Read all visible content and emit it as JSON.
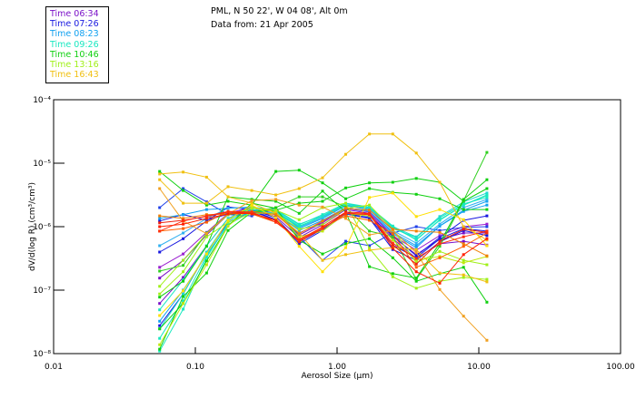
{
  "header": {
    "line1": "PML, N 50 22', W 04 08', Alt 0m",
    "line2": "Data from: 21 Apr 2005"
  },
  "legend": [
    {
      "label": "Time 06:34",
      "color": "#7a10c8"
    },
    {
      "label": "Time 07:26",
      "color": "#1818e0"
    },
    {
      "label": "Time 08:23",
      "color": "#10a0f0"
    },
    {
      "label": "Time 09:26",
      "color": "#18e8c0"
    },
    {
      "label": "Time 10:46",
      "color": "#10d010"
    },
    {
      "label": "Time 13:16",
      "color": "#a0f018"
    },
    {
      "label": "Time 16:43",
      "color": "#f0c010"
    }
  ],
  "chart_data": {
    "type": "line",
    "title": "",
    "xlabel": "Aerosol Size (µm)",
    "ylabel": "dV/d(log R) (cm³/cm³)",
    "xscale": "log",
    "yscale": "log",
    "xlim": [
      0.01,
      100.0
    ],
    "ylim_log10": [
      -8,
      -4
    ],
    "xticks": [
      "0.01",
      "0.10",
      "1.00",
      "10.00",
      "100.00"
    ],
    "yticks_log10": [
      -4,
      -5,
      -6,
      -7,
      -8
    ],
    "yticks": [
      "10⁻⁴",
      "10⁻⁵",
      "10⁻⁶",
      "10⁻⁷",
      "10⁻⁸"
    ],
    "x": [
      0.056,
      0.082,
      0.12,
      0.17,
      0.25,
      0.37,
      0.54,
      0.79,
      1.15,
      1.69,
      2.47,
      3.62,
      5.3,
      7.8,
      11.4
    ],
    "series_note_units": "values are log10 of dV/d(log R)",
    "series": [
      {
        "name": "Time 06:34",
        "color": "#7a10c8",
        "values": [
          -6.81,
          -6.53,
          -6.13,
          -5.81,
          -5.7,
          -5.8,
          -6.13,
          -5.94,
          -5.7,
          -5.76,
          -6.16,
          -6.44,
          -6.2,
          -6.1,
          -6.1
        ]
      },
      {
        "name": "Time 06:34",
        "color": "#7a10c8",
        "values": [
          -7.21,
          -6.8,
          -6.3,
          -5.87,
          -5.73,
          -5.84,
          -6.17,
          -5.97,
          -5.73,
          -5.79,
          -6.19,
          -6.5,
          -6.27,
          -6.23,
          -6.29
        ]
      },
      {
        "name": "Time 06:34",
        "color": "#9a20d0",
        "values": [
          -6.64,
          -6.43,
          -6.09,
          -5.79,
          -5.69,
          -5.81,
          -6.1,
          -5.93,
          -5.71,
          -5.77,
          -6.14,
          -6.37,
          -6.14,
          -6.0,
          -5.96
        ]
      },
      {
        "name": "Time 07:26",
        "color": "#1818e0",
        "values": [
          -6.4,
          -6.19,
          -5.91,
          -5.69,
          -5.73,
          -5.86,
          -6.24,
          -6.03,
          -5.79,
          -5.86,
          -6.29,
          -6.49,
          -6.19,
          -6.03,
          -6.07
        ]
      },
      {
        "name": "Time 07:26",
        "color": "#1818e0",
        "values": [
          -7.56,
          -7.06,
          -6.41,
          -5.93,
          -5.76,
          -5.89,
          -6.27,
          -6.06,
          -5.8,
          -5.87,
          -6.36,
          -6.53,
          -6.24,
          -6.06,
          -6.14
        ]
      },
      {
        "name": "Time 07:26",
        "color": "#2040e8",
        "values": [
          -5.7,
          -5.4,
          -5.61,
          -5.81,
          -5.83,
          -5.7,
          -6.16,
          -6.53,
          -6.23,
          -6.3,
          -6.1,
          -6.0,
          -6.06,
          -6.01,
          -6.0
        ]
      },
      {
        "name": "Time 07:26",
        "color": "#1818e0",
        "values": [
          -5.91,
          -5.81,
          -5.9,
          -5.8,
          -5.74,
          -5.89,
          -6.24,
          -6.04,
          -5.77,
          -5.84,
          -6.14,
          -6.46,
          -6.17,
          -5.9,
          -5.83
        ]
      },
      {
        "name": "Time 08:23",
        "color": "#10a0f0",
        "values": [
          -5.87,
          -5.81,
          -5.73,
          -5.71,
          -5.69,
          -5.74,
          -6.03,
          -5.87,
          -5.67,
          -5.73,
          -6.09,
          -6.3,
          -5.99,
          -5.74,
          -5.6
        ]
      },
      {
        "name": "Time 08:23",
        "color": "#10a0f0",
        "values": [
          -7.49,
          -7.0,
          -6.44,
          -5.97,
          -5.74,
          -5.79,
          -6.06,
          -5.9,
          -5.7,
          -5.76,
          -6.11,
          -6.33,
          -5.99,
          -5.76,
          -5.66
        ]
      },
      {
        "name": "Time 08:23",
        "color": "#30b0f0",
        "values": [
          -6.3,
          -6.1,
          -5.87,
          -5.71,
          -5.7,
          -5.77,
          -6.01,
          -5.86,
          -5.66,
          -5.71,
          -6.06,
          -6.26,
          -5.96,
          -5.7,
          -5.57
        ]
      },
      {
        "name": "Time 09:26",
        "color": "#18e8c0",
        "values": [
          -7.96,
          -7.3,
          -6.49,
          -5.94,
          -5.73,
          -5.76,
          -5.99,
          -5.84,
          -5.66,
          -5.71,
          -6.01,
          -6.2,
          -5.9,
          -5.66,
          -5.51
        ]
      },
      {
        "name": "Time 09:26",
        "color": "#18e8c0",
        "values": [
          -7.76,
          -7.17,
          -6.46,
          -5.97,
          -5.76,
          -5.79,
          -6.0,
          -5.84,
          -5.66,
          -5.69,
          -6.03,
          -6.17,
          -5.86,
          -5.64,
          -5.54
        ]
      },
      {
        "name": "Time 09:26",
        "color": "#20d8d0",
        "values": [
          -7.61,
          -7.06,
          -6.4,
          -5.91,
          -5.71,
          -5.73,
          -5.96,
          -5.83,
          -5.64,
          -5.7,
          -6.0,
          -6.16,
          -5.84,
          -5.61,
          -5.47
        ]
      },
      {
        "name": "Time 09:26",
        "color": "#18e8c0",
        "values": [
          -7.31,
          -6.84,
          -6.3,
          -5.87,
          -5.7,
          -5.74,
          -5.97,
          -5.81,
          -5.63,
          -5.69,
          -5.99,
          -6.21,
          -5.89,
          -5.66,
          -5.5
        ]
      },
      {
        "name": "Time 10:46",
        "color": "#10d010",
        "values": [
          -5.13,
          -5.43,
          -5.66,
          -5.6,
          -5.66,
          -5.13,
          -5.11,
          -5.31,
          -5.56,
          -5.4,
          -5.46,
          -5.49,
          -5.56,
          -5.73,
          -5.73
        ]
      },
      {
        "name": "Time 10:46",
        "color": "#10d010",
        "values": [
          -7.93,
          -7.1,
          -6.73,
          -6.06,
          -5.77,
          -5.74,
          -5.63,
          -5.6,
          -5.39,
          -5.31,
          -5.3,
          -5.24,
          -5.3,
          -5.6,
          -5.4
        ]
      },
      {
        "name": "Time 10:46",
        "color": "#30d020",
        "values": [
          -6.7,
          -6.61,
          -6.1,
          -5.81,
          -5.77,
          -5.7,
          -5.53,
          -5.53,
          -5.69,
          -6.07,
          -6.16,
          -6.83,
          -6.31,
          -5.59,
          -4.83
        ]
      },
      {
        "name": "Time 10:46",
        "color": "#10d010",
        "values": [
          -7.11,
          -6.86,
          -6.31,
          -5.53,
          -5.57,
          -5.6,
          -5.79,
          -5.44,
          -5.77,
          -6.63,
          -6.74,
          -6.81,
          -6.26,
          -5.57,
          -5.26
        ]
      },
      {
        "name": "Time 10:46",
        "color": "#10d010",
        "values": [
          -7.61,
          -7.21,
          -6.54,
          -5.99,
          -5.63,
          -5.71,
          -6.21,
          -6.43,
          -6.27,
          -6.19,
          -6.49,
          -6.86,
          -6.74,
          -6.64,
          -7.19
        ]
      },
      {
        "name": "Time 13:16",
        "color": "#a0f018",
        "values": [
          -7.06,
          -6.71,
          -6.16,
          -5.93,
          -5.79,
          -5.79,
          -6.04,
          -5.97,
          -5.71,
          -5.66,
          -6.04,
          -6.57,
          -6.39,
          -6.53,
          -6.6
        ]
      },
      {
        "name": "Time 13:16",
        "color": "#a0f018",
        "values": [
          -6.94,
          -6.53,
          -6.11,
          -5.81,
          -5.71,
          -5.74,
          -5.89,
          -5.7,
          -5.63,
          -6.34,
          -6.79,
          -6.97,
          -6.86,
          -6.8,
          -6.83
        ]
      },
      {
        "name": "Time 13:16",
        "color": "#c0e810",
        "values": [
          -7.86,
          -7.21,
          -6.6,
          -5.99,
          -5.69,
          -5.77,
          -6.16,
          -6.07,
          -5.79,
          -5.83,
          -6.21,
          -6.53,
          -6.47,
          -6.57,
          -6.47
        ]
      },
      {
        "name": "Time 16:43",
        "color": "#f0c010",
        "values": [
          -5.17,
          -5.14,
          -5.22,
          -5.53,
          -5.63,
          -5.79,
          -6.1,
          -6.53,
          -6.44,
          -6.37,
          -6.33,
          -6.36,
          -6.73,
          -6.76,
          -6.87
        ]
      },
      {
        "name": "Time 16:43",
        "color": "#f0c010",
        "values": [
          -5.26,
          -5.63,
          -5.63,
          -5.37,
          -5.43,
          -5.5,
          -5.4,
          -5.23,
          -4.86,
          -4.54,
          -4.54,
          -4.84,
          -5.3,
          -6.0,
          -6.21
        ]
      },
      {
        "name": "Time 16:43",
        "color": "#ffe000",
        "values": [
          -7.4,
          -7.01,
          -6.43,
          -5.9,
          -5.66,
          -5.86,
          -6.31,
          -6.71,
          -6.33,
          -5.54,
          -5.47,
          -5.84,
          -5.73,
          -5.89,
          -6.3
        ]
      },
      {
        "name": "Time 16:43",
        "color": "#f0a020",
        "values": [
          -5.4,
          -5.91,
          -6.11,
          -5.8,
          -5.59,
          -5.57,
          -5.66,
          -5.69,
          -5.87,
          -6.13,
          -6.06,
          -6.41,
          -6.99,
          -7.41,
          -7.79
        ]
      },
      {
        "name": "Time 16:43",
        "color": "#f08000",
        "values": [
          -5.83,
          -5.87,
          -5.81,
          -5.8,
          -5.76,
          -5.81,
          -6.11,
          -5.91,
          -5.71,
          -5.74,
          -6.04,
          -6.07,
          -6.09,
          -6.27,
          -6.46
        ]
      },
      {
        "name": "Time 16:43",
        "color": "#ff6000",
        "values": [
          -6.07,
          -6.03,
          -5.93,
          -5.76,
          -5.8,
          -5.93,
          -6.2,
          -6.01,
          -5.83,
          -5.9,
          -6.11,
          -6.64,
          -6.49,
          -6.31,
          -6.1
        ]
      },
      {
        "name": "Time 16:43",
        "color": "#f02010",
        "values": [
          -5.94,
          -5.9,
          -5.84,
          -5.77,
          -5.79,
          -5.9,
          -6.24,
          -6.03,
          -5.79,
          -5.81,
          -6.29,
          -6.59,
          -6.23,
          -6.04,
          -6.09
        ]
      },
      {
        "name": "Time 16:43",
        "color": "#ff2000",
        "values": [
          -6.0,
          -5.96,
          -5.87,
          -5.8,
          -5.79,
          -5.9,
          -6.22,
          -6.0,
          -5.77,
          -5.79,
          -6.34,
          -6.71,
          -6.89,
          -6.44,
          -6.19
        ]
      },
      {
        "name": "Time 16:43",
        "color": "#ff3010",
        "values": [
          -6.07,
          -5.91,
          -5.83,
          -5.76,
          -5.77,
          -5.93,
          -6.21,
          -6.03,
          -5.79,
          -5.8,
          -6.26,
          -6.5,
          -6.27,
          -6.16,
          -6.07
        ]
      }
    ]
  }
}
